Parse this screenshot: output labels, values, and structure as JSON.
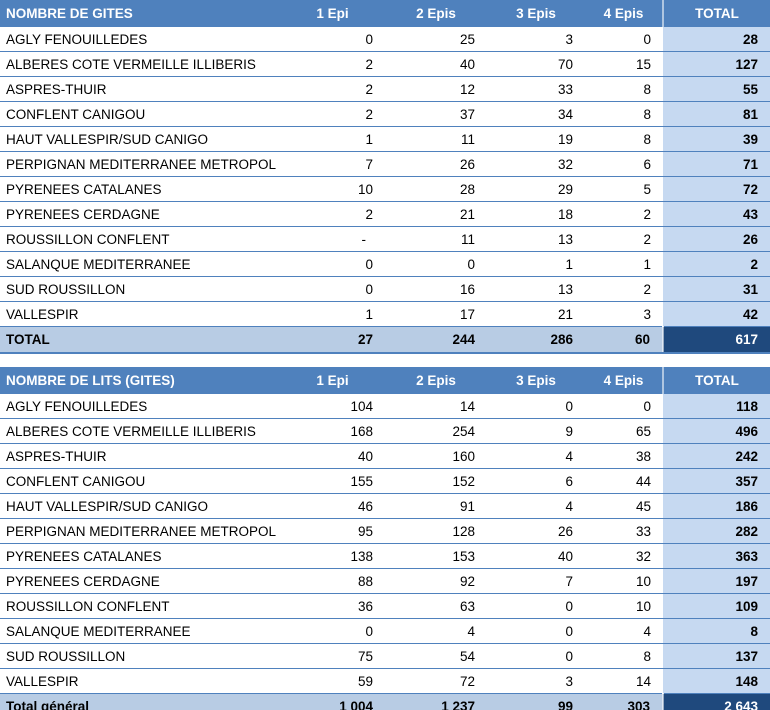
{
  "styles": {
    "header_bg": "#4F81BD",
    "header_text": "#FFFFFF",
    "row_border": "#4F81BD",
    "total_col_bg": "#C6D9F1",
    "total_row_bg": "#B8CCE4",
    "grand_total_bg": "#1F497D",
    "grand_total_text": "#FFFFFF",
    "body_text": "#000000"
  },
  "chart_data": [
    {
      "type": "table",
      "title": "NOMBRE DE GITES",
      "value_columns": [
        "1 Epi",
        "2 Epis",
        "3 Epis",
        "4 Epis",
        "TOTAL"
      ],
      "rows": [
        [
          "AGLY FENOUILLEDES",
          "0",
          "25",
          "3",
          "0",
          "28"
        ],
        [
          "ALBERES COTE VERMEILLE ILLIBERIS",
          "2",
          "40",
          "70",
          "15",
          "127"
        ],
        [
          "ASPRES-THUIR",
          "2",
          "12",
          "33",
          "8",
          "55"
        ],
        [
          "CONFLENT CANIGOU",
          "2",
          "37",
          "34",
          "8",
          "81"
        ],
        [
          "HAUT VALLESPIR/SUD CANIGO",
          "1",
          "11",
          "19",
          "8",
          "39"
        ],
        [
          "PERPIGNAN MEDITERRANEE METROPOL",
          "7",
          "26",
          "32",
          "6",
          "71"
        ],
        [
          "PYRENEES CATALANES",
          "10",
          "28",
          "29",
          "5",
          "72"
        ],
        [
          "PYRENEES CERDAGNE",
          "2",
          "21",
          "18",
          "2",
          "43"
        ],
        [
          "ROUSSILLON CONFLENT",
          "-",
          "11",
          "13",
          "2",
          "26"
        ],
        [
          "SALANQUE MEDITERRANEE",
          "0",
          "0",
          "1",
          "1",
          "2"
        ],
        [
          "SUD ROUSSILLON",
          "0",
          "16",
          "13",
          "2",
          "31"
        ],
        [
          "VALLESPIR",
          "1",
          "17",
          "21",
          "3",
          "42"
        ]
      ],
      "total_row": [
        "TOTAL",
        "27",
        "244",
        "286",
        "60",
        "617"
      ]
    },
    {
      "type": "table",
      "title": "NOMBRE DE LITS (GITES)",
      "value_columns": [
        "1 Epi",
        "2 Epis",
        "3 Epis",
        "4 Epis",
        "TOTAL"
      ],
      "rows": [
        [
          "AGLY FENOUILLEDES",
          "104",
          "14",
          "0",
          "0",
          "118"
        ],
        [
          "ALBERES COTE VERMEILLE ILLIBERIS",
          "168",
          "254",
          "9",
          "65",
          "496"
        ],
        [
          "ASPRES-THUIR",
          "40",
          "160",
          "4",
          "38",
          "242"
        ],
        [
          "CONFLENT CANIGOU",
          "155",
          "152",
          "6",
          "44",
          "357"
        ],
        [
          "HAUT VALLESPIR/SUD CANIGO",
          "46",
          "91",
          "4",
          "45",
          "186"
        ],
        [
          "PERPIGNAN MEDITERRANEE METROPOL",
          "95",
          "128",
          "26",
          "33",
          "282"
        ],
        [
          "PYRENEES CATALANES",
          "138",
          "153",
          "40",
          "32",
          "363"
        ],
        [
          "PYRENEES CERDAGNE",
          "88",
          "92",
          "7",
          "10",
          "197"
        ],
        [
          "ROUSSILLON CONFLENT",
          "36",
          "63",
          "0",
          "10",
          "109"
        ],
        [
          "SALANQUE MEDITERRANEE",
          "0",
          "4",
          "0",
          "4",
          "8"
        ],
        [
          "SUD ROUSSILLON",
          "75",
          "54",
          "0",
          "8",
          "137"
        ],
        [
          "VALLESPIR",
          "59",
          "72",
          "3",
          "14",
          "148"
        ]
      ],
      "total_row": [
        "Total général",
        "1 004",
        "1 237",
        "99",
        "303",
        "2 643"
      ]
    }
  ]
}
